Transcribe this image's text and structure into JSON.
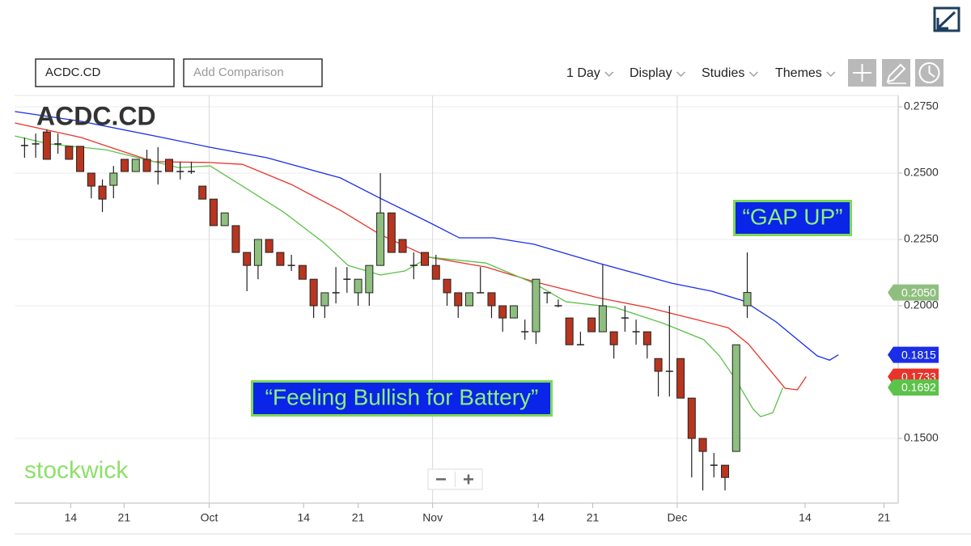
{
  "toolbar": {
    "symbol": "ACDC.CD",
    "comparison_placeholder": "Add Comparison",
    "menus": [
      "1 Day",
      "Display",
      "Studies",
      "Themes"
    ]
  },
  "chart_data": {
    "type": "candlestick",
    "title": "ACDC.CD",
    "watermark": "stockwick",
    "annotations": [
      "“GAP UP”",
      "“Feeling Bullish for Battery”"
    ],
    "xlim": [
      -0.9,
      78.5
    ],
    "xticks": [
      {
        "value": 4.15,
        "label": "14"
      },
      {
        "value": 8.95,
        "label": "21"
      },
      {
        "value": 16.6,
        "label": "Oct"
      },
      {
        "value": 25.1,
        "label": "14"
      },
      {
        "value": 30.0,
        "label": "21"
      },
      {
        "value": 36.7,
        "label": "Nov"
      },
      {
        "value": 46.2,
        "label": "14"
      },
      {
        "value": 51.1,
        "label": "21"
      },
      {
        "value": 58.7,
        "label": "Dec"
      },
      {
        "value": 70.2,
        "label": "14"
      },
      {
        "value": 77.3,
        "label": "21"
      }
    ],
    "ylim": [
      0.125,
      0.28
    ],
    "yticks": [
      {
        "value": 0.275,
        "label": "0.2750"
      },
      {
        "value": 0.25,
        "label": "0.2500"
      },
      {
        "value": 0.225,
        "label": "0.2250"
      },
      {
        "value": 0.2,
        "label": "0.2000"
      },
      {
        "value": 0.15,
        "label": "0.1500"
      }
    ],
    "grid": true,
    "up_color": "#8fbf7f",
    "down_color": "#b8351f",
    "doji_color": "#222222",
    "candles": {
      "x": [
        0,
        1,
        2,
        3,
        4,
        5,
        6,
        7,
        8,
        9,
        10,
        11,
        12,
        13,
        14,
        15,
        16,
        17,
        18,
        19,
        20,
        21,
        22,
        23,
        24,
        25,
        26,
        27,
        28,
        29,
        30,
        31,
        32,
        33,
        34,
        35,
        36,
        37,
        38,
        39,
        40,
        41,
        42,
        43,
        44,
        45,
        46,
        47,
        48,
        49,
        50,
        51,
        52,
        53,
        54,
        55,
        56,
        57,
        58,
        59,
        60,
        61,
        62,
        63,
        64,
        65
      ],
      "open": [
        0.2604,
        0.261,
        0.2655,
        0.261,
        0.2601,
        0.2601,
        0.25,
        0.2451,
        0.2454,
        0.2552,
        0.2506,
        0.2552,
        0.2506,
        0.2552,
        0.2506,
        0.2506,
        0.2451,
        0.2402,
        0.2302,
        0.2302,
        0.2201,
        0.2152,
        0.225,
        0.2201,
        0.2152,
        0.2152,
        0.21,
        0.2,
        0.2049,
        0.21,
        0.2049,
        0.2049,
        0.2152,
        0.235,
        0.225,
        0.2152,
        0.2201,
        0.2152,
        0.21,
        0.2049,
        0.2,
        0.2049,
        0.2049,
        0.2,
        0.1954,
        0.1902,
        0.1902,
        0.2049,
        0.2,
        0.1954,
        0.1853,
        0.1954,
        0.1902,
        0.1902,
        0.1954,
        0.1902,
        0.1902,
        0.1801,
        0.1753,
        0.1801,
        0.1652,
        0.15,
        0.1399,
        0.1399,
        0.1451,
        0.2
      ],
      "high": [
        0.2634,
        0.2649,
        0.2665,
        0.2649,
        0.2601,
        0.2601,
        0.25,
        0.2476,
        0.2527,
        0.2552,
        0.2552,
        0.2588,
        0.2598,
        0.2552,
        0.2543,
        0.2543,
        0.2451,
        0.2402,
        0.235,
        0.2302,
        0.2201,
        0.225,
        0.225,
        0.2201,
        0.2192,
        0.2152,
        0.21,
        0.2049,
        0.2146,
        0.2146,
        0.21,
        0.2152,
        0.25,
        0.235,
        0.225,
        0.2201,
        0.2201,
        0.2192,
        0.21,
        0.2049,
        0.2049,
        0.2146,
        0.2049,
        0.2,
        0.2,
        0.1948,
        0.21,
        0.2049,
        0.2024,
        0.1954,
        0.1902,
        0.1954,
        0.2155,
        0.1902,
        0.2,
        0.1948,
        0.1902,
        0.1801,
        0.2,
        0.1801,
        0.1652,
        0.15,
        0.1445,
        0.1399,
        0.1853,
        0.2201
      ],
      "low": [
        0.2558,
        0.2558,
        0.2552,
        0.2573,
        0.2552,
        0.2506,
        0.2405,
        0.2353,
        0.2405,
        0.2506,
        0.2506,
        0.2506,
        0.2457,
        0.2506,
        0.2476,
        0.2497,
        0.2402,
        0.2302,
        0.2302,
        0.2201,
        0.2055,
        0.21,
        0.2201,
        0.2152,
        0.2131,
        0.21,
        0.1954,
        0.1954,
        0.2009,
        0.2049,
        0.2,
        0.2,
        0.2152,
        0.2201,
        0.2201,
        0.21,
        0.2152,
        0.21,
        0.2,
        0.1954,
        0.2,
        0.2049,
        0.1954,
        0.1902,
        0.1954,
        0.1872,
        0.1856,
        0.2009,
        0.1994,
        0.1853,
        0.1853,
        0.1902,
        0.1902,
        0.1801,
        0.1902,
        0.1853,
        0.1801,
        0.1658,
        0.1658,
        0.1652,
        0.1353,
        0.1304,
        0.1353,
        0.1304,
        0.1451,
        0.1954
      ],
      "close": [
        0.2604,
        0.261,
        0.2552,
        0.261,
        0.2552,
        0.2506,
        0.2451,
        0.2402,
        0.25,
        0.2506,
        0.2552,
        0.2506,
        0.2506,
        0.2506,
        0.2506,
        0.2506,
        0.2402,
        0.2302,
        0.235,
        0.2201,
        0.2152,
        0.225,
        0.2201,
        0.2152,
        0.2152,
        0.21,
        0.2,
        0.2049,
        0.2049,
        0.21,
        0.21,
        0.2152,
        0.235,
        0.2201,
        0.2201,
        0.2152,
        0.2152,
        0.21,
        0.2049,
        0.2,
        0.2049,
        0.2049,
        0.2,
        0.1954,
        0.2,
        0.1902,
        0.21,
        0.2049,
        0.2,
        0.1853,
        0.1853,
        0.1902,
        0.2,
        0.1853,
        0.1954,
        0.1902,
        0.1853,
        0.1753,
        0.1753,
        0.1652,
        0.15,
        0.1451,
        0.1399,
        0.1353,
        0.1853,
        0.205
      ],
      "last_value_label": "0.2050",
      "label_color": "#8fbf7f"
    },
    "series": [
      {
        "color": "#1a2ee8",
        "x": [
          -0.87,
          5.1,
          12.4,
          16.6,
          21.8,
          28.4,
          32.0,
          36.4,
          39.1,
          42.2,
          45.8,
          51.6,
          58.2,
          61.8,
          64.7,
          67.6,
          71.3,
          72.4,
          73.2
        ],
        "values": [
          0.2732,
          0.2695,
          0.2634,
          0.2598,
          0.2558,
          0.2482,
          0.2405,
          0.2314,
          0.2256,
          0.2256,
          0.2232,
          0.2161,
          0.2085,
          0.2055,
          0.2018,
          0.1939,
          0.1811,
          0.1795,
          0.1815
        ],
        "last_value_label": "0.1815"
      },
      {
        "color": "#e8332a",
        "x": [
          -0.87,
          5.1,
          11.6,
          16.6,
          19.6,
          24.0,
          28.4,
          32.0,
          36.4,
          41.5,
          45.8,
          51.6,
          56.0,
          60.4,
          63.3,
          65.1,
          66.9,
          68.4,
          69.5,
          70.3
        ],
        "values": [
          0.2689,
          0.2634,
          0.2543,
          0.254,
          0.2533,
          0.2457,
          0.236,
          0.2268,
          0.2183,
          0.2146,
          0.2091,
          0.203,
          0.1994,
          0.1948,
          0.1917,
          0.1856,
          0.1765,
          0.1689,
          0.1683,
          0.1733
        ],
        "last_value_label": "0.1733"
      },
      {
        "color": "#5cc24a",
        "x": [
          -0.87,
          2.2,
          7.3,
          13.8,
          16.7,
          19.6,
          23.3,
          26.9,
          29.1,
          32.0,
          34.2,
          36.4,
          41.5,
          45.8,
          48.7,
          53.1,
          57.5,
          61.1,
          62.5,
          64.0,
          65.5,
          66.2,
          67.3,
          68.2
        ],
        "values": [
          0.264,
          0.261,
          0.2588,
          0.2521,
          0.2527,
          0.2451,
          0.2353,
          0.2238,
          0.2152,
          0.2116,
          0.2131,
          0.2183,
          0.2161,
          0.2085,
          0.2015,
          0.1994,
          0.1933,
          0.1872,
          0.1811,
          0.1719,
          0.1612,
          0.1582,
          0.1597,
          0.1692
        ],
        "last_value_label": "0.1692"
      }
    ]
  }
}
